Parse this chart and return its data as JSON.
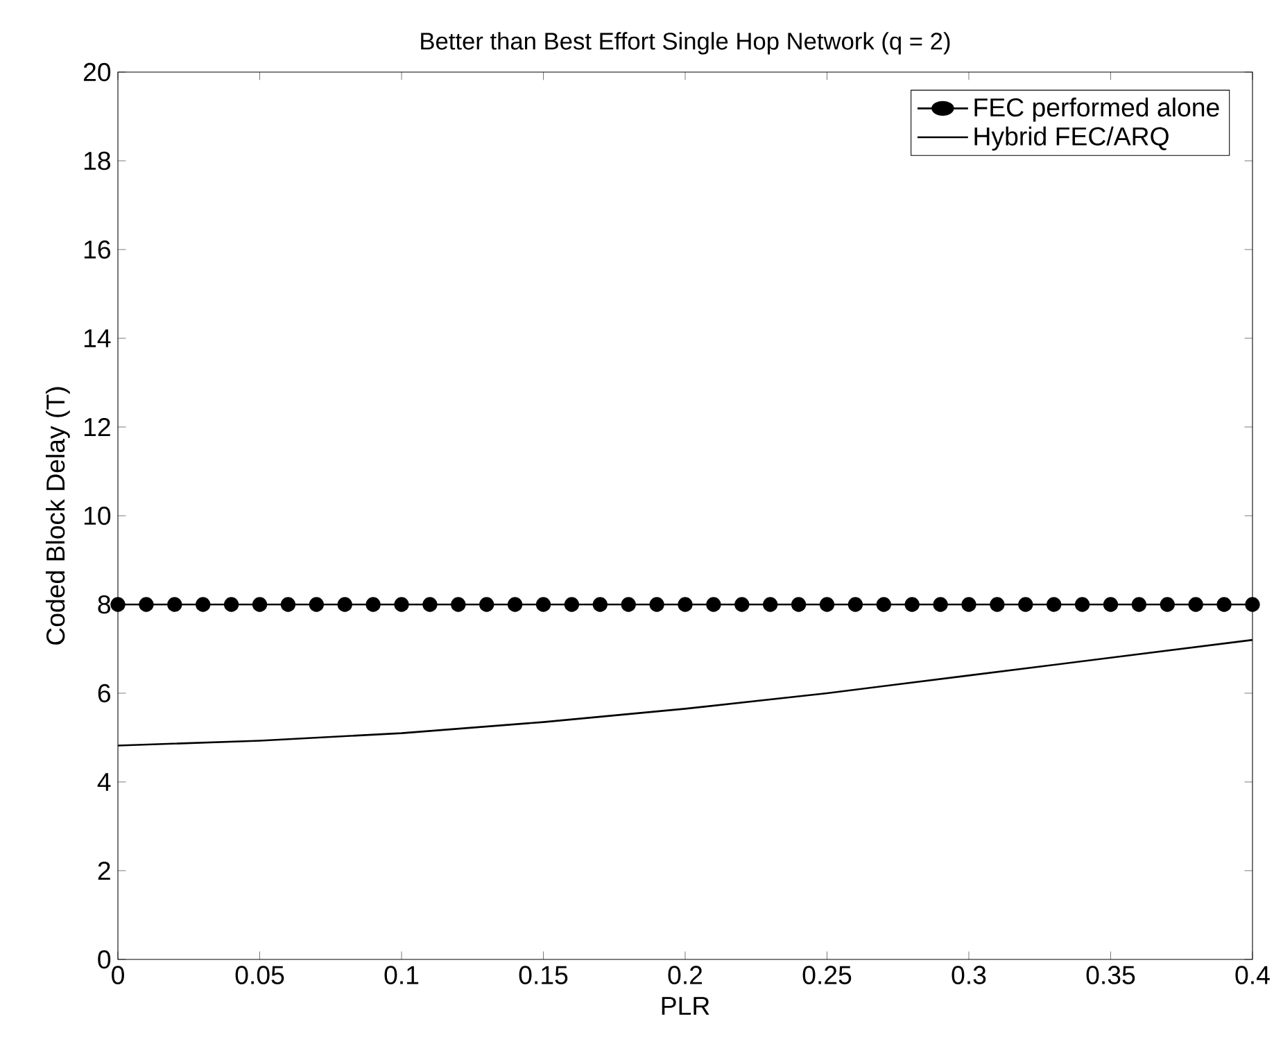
{
  "chart_data": {
    "type": "line",
    "title": "Better than Best Effort Single Hop Network (q = 2)",
    "xlabel": "PLR",
    "ylabel": "Coded Block Delay (T)",
    "xlim": [
      0,
      0.4
    ],
    "ylim": [
      0,
      20
    ],
    "xticks": [
      0,
      0.05,
      0.1,
      0.15,
      0.2,
      0.25,
      0.3,
      0.35,
      0.4
    ],
    "yticks": [
      0,
      2,
      4,
      6,
      8,
      10,
      12,
      14,
      16,
      18,
      20
    ],
    "grid": false,
    "legend": "top right",
    "series": [
      {
        "name": "FEC performed alone",
        "color": "#000000",
        "marker": "circle",
        "x": [
          0,
          0.01,
          0.02,
          0.03,
          0.04,
          0.05,
          0.06,
          0.07,
          0.08,
          0.09,
          0.1,
          0.11,
          0.12,
          0.13,
          0.14,
          0.15,
          0.16,
          0.17,
          0.18,
          0.19,
          0.2,
          0.21,
          0.22,
          0.23,
          0.24,
          0.25,
          0.26,
          0.27,
          0.28,
          0.29,
          0.3,
          0.31,
          0.32,
          0.33,
          0.34,
          0.35,
          0.36,
          0.37,
          0.38,
          0.39,
          0.4
        ],
        "values": [
          8,
          8,
          8,
          8,
          8,
          8,
          8,
          8,
          8,
          8,
          8,
          8,
          8,
          8,
          8,
          8,
          8,
          8,
          8,
          8,
          8,
          8,
          8,
          8,
          8,
          8,
          8,
          8,
          8,
          8,
          8,
          8,
          8,
          8,
          8,
          8,
          8,
          8,
          8,
          8,
          8
        ]
      },
      {
        "name": "Hybrid FEC/ARQ",
        "color": "#000000",
        "marker": "none",
        "x": [
          0,
          0.05,
          0.1,
          0.15,
          0.2,
          0.25,
          0.3,
          0.35,
          0.4
        ],
        "values": [
          4.82,
          4.93,
          5.1,
          5.35,
          5.65,
          6.0,
          6.4,
          6.8,
          7.2
        ]
      }
    ]
  }
}
